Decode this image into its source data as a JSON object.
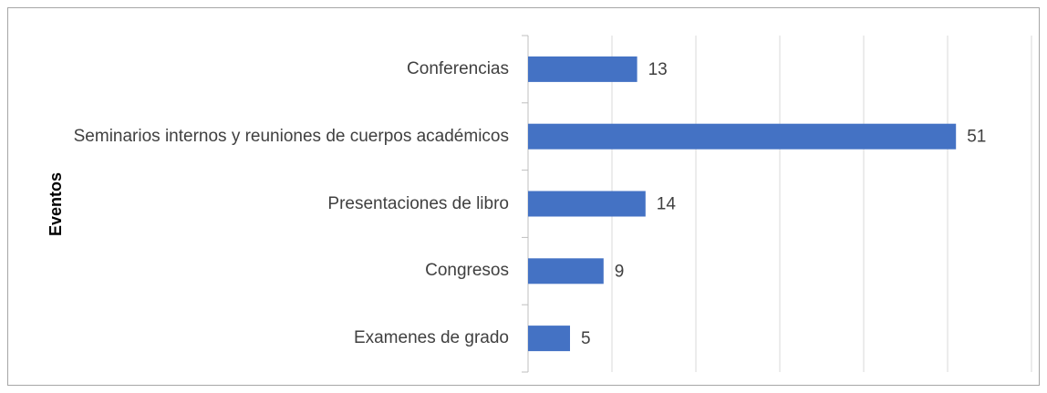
{
  "chart_data": {
    "type": "bar",
    "orientation": "horizontal",
    "y_label": "Eventos",
    "categories": [
      "Conferencias",
      "Seminarios internos y reuniones de cuerpos académicos",
      "Presentaciones de libro",
      "Congresos",
      "Examenes de grado"
    ],
    "values": [
      13,
      51,
      14,
      9,
      5
    ],
    "color": "#4472c4",
    "xlim": [
      0,
      60
    ],
    "xticks": [
      0,
      10,
      20,
      30,
      40,
      50,
      60
    ],
    "grid": true
  }
}
